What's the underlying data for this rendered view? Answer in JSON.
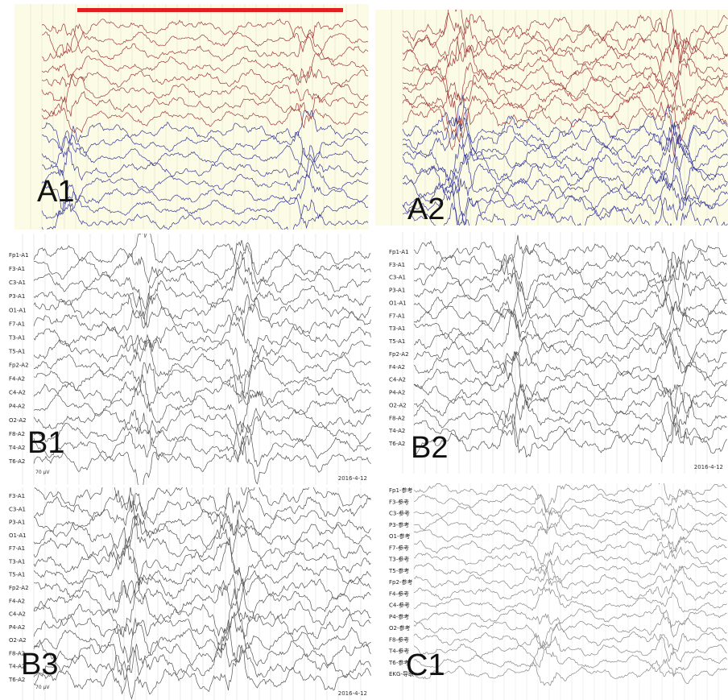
{
  "panels": [
    {
      "label": "A1"
    },
    {
      "label": "A2"
    },
    {
      "label": "B1",
      "channels": [
        "Fp1-A1",
        "F3-A1",
        "C3-A1",
        "P3-A1",
        "O1-A1",
        "F7-A1",
        "T3-A1",
        "T5-A1",
        "Fp2-A2",
        "F4-A2",
        "C4-A2",
        "P4-A2",
        "O2-A2",
        "F8-A2",
        "T4-A2",
        "T6-A2"
      ],
      "scale": "70 µV",
      "date": "2016-4-12"
    },
    {
      "label": "B2",
      "channels": [
        "Fp1-A1",
        "F3-A1",
        "C3-A1",
        "P3-A1",
        "O1-A1",
        "F7-A1",
        "T3-A1",
        "T5-A1",
        "Fp2-A2",
        "F4-A2",
        "C4-A2",
        "P4-A2",
        "O2-A2",
        "F8-A2",
        "T4-A2",
        "T6-A2"
      ],
      "date": "2016-4-12"
    },
    {
      "label": "B3",
      "channels": [
        "F3-A1",
        "C3-A1",
        "P3-A1",
        "O1-A1",
        "F7-A1",
        "T3-A1",
        "T5-A1",
        "Fp2-A2",
        "F4-A2",
        "C4-A2",
        "P4-A2",
        "O2-A2",
        "F8-A2",
        "T4-A2",
        "T6-A2"
      ],
      "scale": "70 µV",
      "date": "2016-4-12"
    },
    {
      "label": "C1",
      "channels": [
        "Fp1-参考",
        "F3-参考",
        "C3-参考",
        "P3-参考",
        "O1-参考",
        "F7-参考",
        "T3-参考",
        "T5-参考",
        "Fp2-参考",
        "F4-参考",
        "C4-参考",
        "P4-参考",
        "O2-参考",
        "F8-参考",
        "T4-参考",
        "T6-参考",
        "EKG-导联"
      ]
    }
  ]
}
